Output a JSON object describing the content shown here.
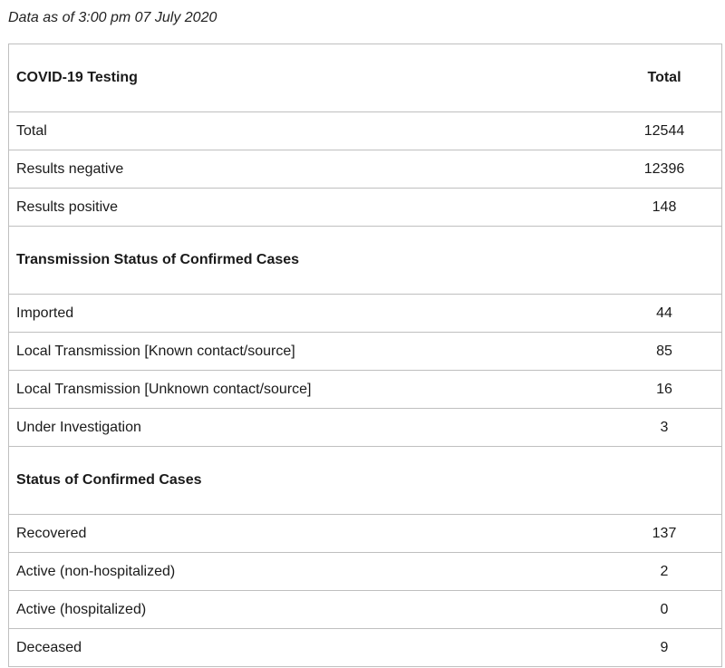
{
  "as_of": "Data as of 3:00 pm 07 July 2020",
  "table": {
    "header": {
      "label": "COVID-19 Testing",
      "value": "Total"
    },
    "testing_rows": [
      {
        "label": "Total",
        "value": "12544"
      },
      {
        "label": "Results negative",
        "value": "12396"
      },
      {
        "label": "Results positive",
        "value": "148"
      }
    ],
    "transmission_section": "Transmission Status of Confirmed Cases",
    "transmission_rows": [
      {
        "label": "Imported",
        "value": "44"
      },
      {
        "label": "Local Transmission [Known contact/source]",
        "value": "85"
      },
      {
        "label": "Local Transmission [Unknown contact/source]",
        "value": "16"
      },
      {
        "label": "Under Investigation",
        "value": "3"
      }
    ],
    "status_section": "Status of Confirmed Cases",
    "status_rows": [
      {
        "label": "Recovered",
        "value": "137"
      },
      {
        "label": "Active (non-hospitalized)",
        "value": "2"
      },
      {
        "label": "Active (hospitalized)",
        "value": "0"
      },
      {
        "label": "Deceased",
        "value": "9"
      }
    ]
  }
}
